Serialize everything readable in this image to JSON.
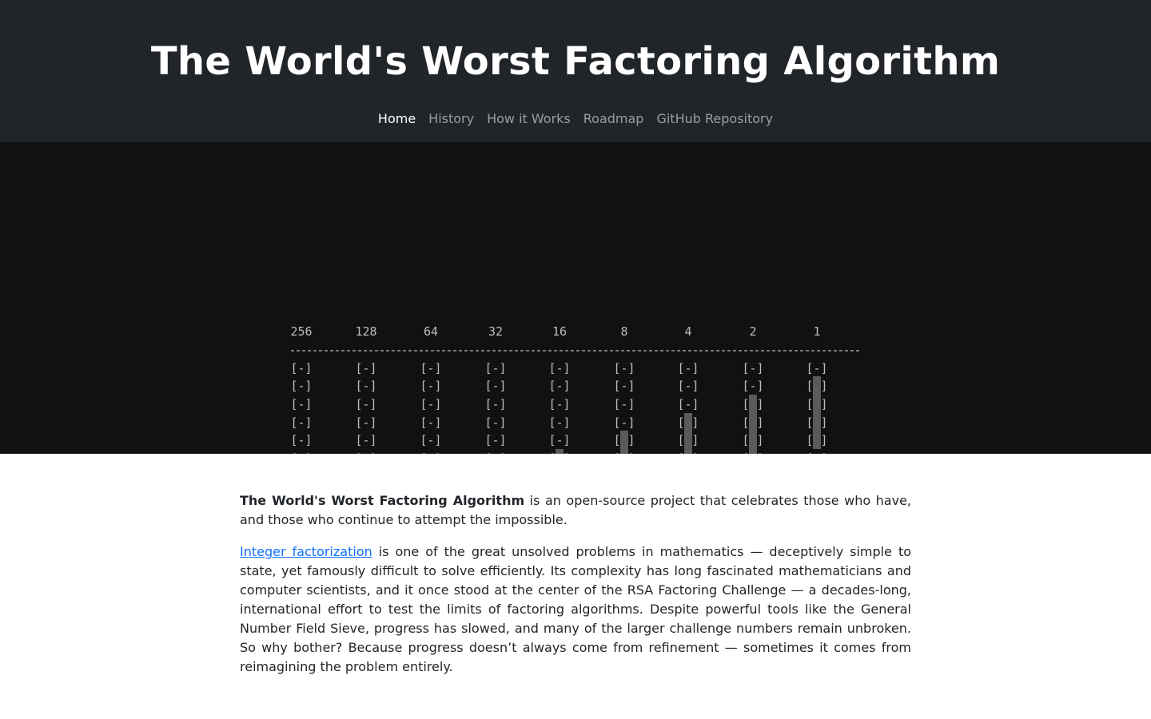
{
  "header": {
    "title": "The World's Worst Factoring Algorithm",
    "nav": [
      {
        "label": "Home",
        "active": true
      },
      {
        "label": "History",
        "active": false
      },
      {
        "label": "How it Works",
        "active": false
      },
      {
        "label": "Roadmap",
        "active": false
      },
      {
        "label": "GitHub Repository",
        "active": false
      }
    ]
  },
  "visualization": {
    "column_labels": [
      "256",
      "128",
      "64",
      "32",
      "16",
      "8",
      "4",
      "2",
      "1"
    ],
    "empty_cell": "[-]",
    "open_cell": "[ ]",
    "grid": [
      [
        "-",
        "-",
        "-",
        "-",
        "-",
        "-",
        "-",
        "-",
        "-"
      ],
      [
        "-",
        "-",
        "-",
        "-",
        "-",
        "-",
        "-",
        "-",
        "g"
      ],
      [
        "-",
        "-",
        "-",
        "-",
        "-",
        "-",
        "-",
        "g",
        "g"
      ],
      [
        "-",
        "-",
        "-",
        "-",
        "-",
        "-",
        "g",
        "g",
        "g"
      ],
      [
        "-",
        "-",
        "-",
        "-",
        "-",
        "g",
        "g",
        "g",
        "g"
      ],
      [
        "-",
        "-",
        "-",
        "-",
        "g",
        "g",
        "g",
        "g",
        " "
      ],
      [
        "-",
        "-",
        "-",
        "m",
        "m",
        "g",
        "g",
        " ",
        " "
      ],
      [
        "-",
        "-",
        "g",
        "c",
        "g",
        "g",
        " ",
        " ",
        "-"
      ],
      [
        " ",
        "m",
        "m",
        "c",
        "m",
        " ",
        " ",
        "-",
        "-"
      ]
    ],
    "result_row": [
      "m",
      " ",
      "c",
      " ",
      " ",
      " ",
      " ",
      "p",
      "c"
    ],
    "colors": {
      "background": "#111111",
      "bracket": "#bdbdbd",
      "gray_fill": "#5a5a5a",
      "magenta": "#e11de1",
      "cyan": "#19d3e0",
      "pink": "#d4157f"
    }
  },
  "content": {
    "p1_bold": "The World's Worst Factoring Algorithm",
    "p1_rest": " is an open-source project that celebrates those who have, and those who continue to attempt the impossible.",
    "p2_link": "Integer factorization",
    "p2_rest": " is one of the great unsolved problems in mathematics — deceptively simple to state, yet famously difficult to solve efficiently. Its complexity has long fascinated mathematicians and computer scientists, and it once stood at the center of the RSA Factoring Challenge — a decades-long, international effort to test the limits of factoring algorithms. Despite powerful tools like the General Number Field Sieve, progress has slowed, and many of the larger challenge numbers remain unbroken. So why bother? Because progress doesn’t always come from refinement — sometimes it comes from reimagining the problem entirely."
  }
}
